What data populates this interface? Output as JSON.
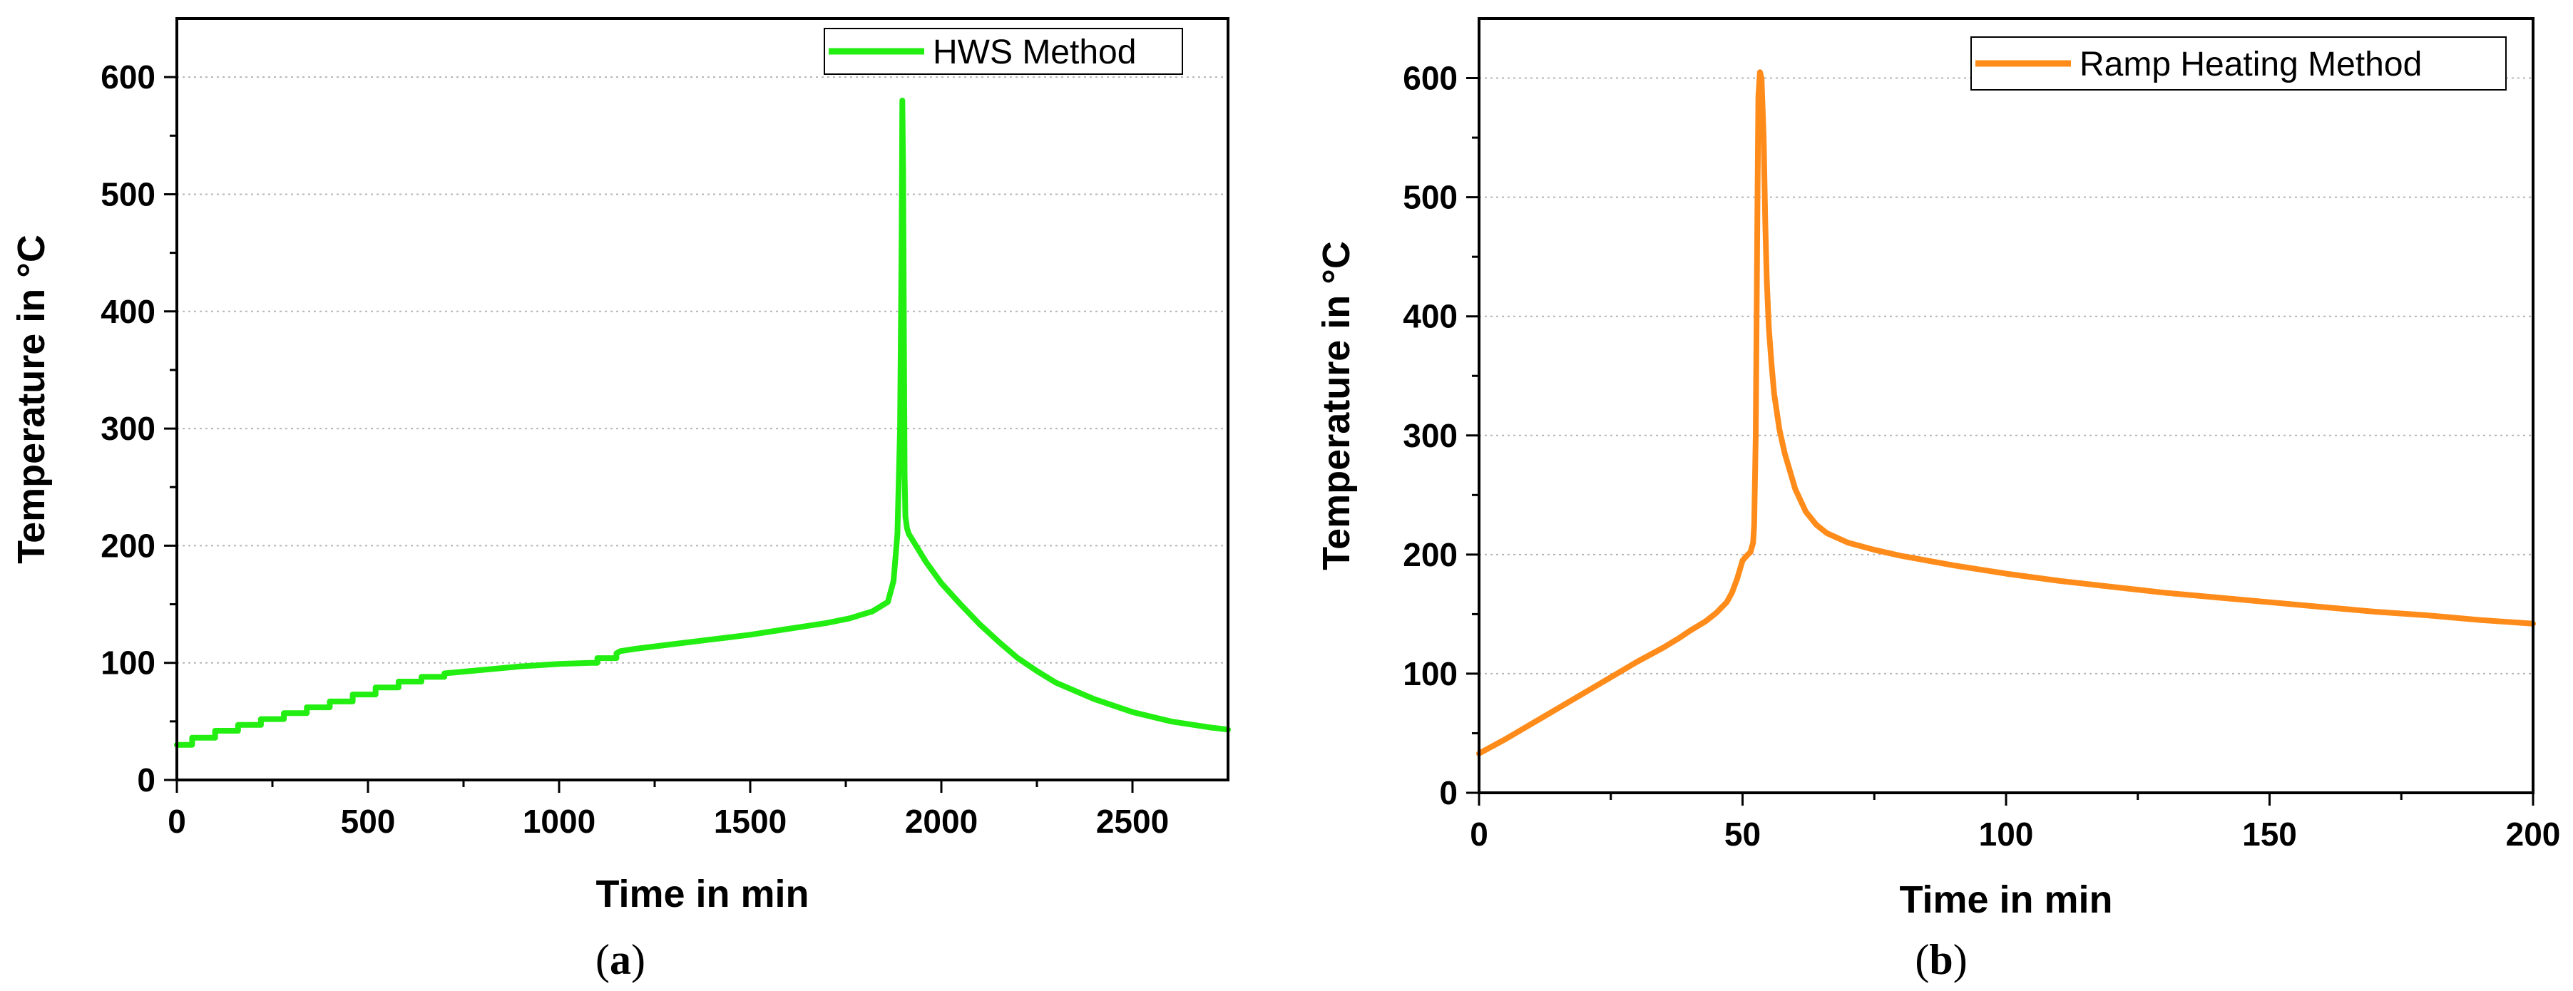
{
  "chart_data": [
    {
      "id": "a",
      "type": "line",
      "panel_label_open": "(",
      "panel_label_letter": "a",
      "panel_label_close": ")",
      "xlabel": "Time in min",
      "ylabel": "Temperature in °C",
      "xlim": [
        0,
        2750
      ],
      "ylim": [
        0,
        650
      ],
      "x_ticks": [
        0,
        500,
        1000,
        1500,
        2000,
        2500
      ],
      "y_ticks": [
        0,
        100,
        200,
        300,
        400,
        500,
        600
      ],
      "x_tick_labels": [
        "0",
        "500",
        "1000",
        "1500",
        "2000",
        "2500"
      ],
      "y_tick_labels": [
        "0",
        "100",
        "200",
        "300",
        "400",
        "500",
        "600"
      ],
      "grid": "horizontal dotted",
      "legend_position": "top-right",
      "series": [
        {
          "name": "HWS Method",
          "color": "#22ee11",
          "x": [
            0,
            40,
            40,
            100,
            100,
            160,
            160,
            220,
            220,
            280,
            280,
            340,
            340,
            400,
            400,
            460,
            460,
            520,
            520,
            580,
            580,
            640,
            640,
            700,
            700,
            800,
            900,
            1000,
            1080,
            1100,
            1100,
            1150,
            1150,
            1160,
            1200,
            1300,
            1400,
            1500,
            1600,
            1700,
            1760,
            1820,
            1860,
            1875,
            1885,
            1892,
            1896,
            1898,
            1900,
            1902,
            1904,
            1906,
            1910,
            1915,
            1930,
            1960,
            2000,
            2050,
            2100,
            2150,
            2200,
            2250,
            2300,
            2400,
            2500,
            2600,
            2700,
            2750
          ],
          "values": [
            30,
            30,
            36,
            36,
            42,
            42,
            47,
            47,
            52,
            52,
            57,
            57,
            62,
            62,
            67,
            67,
            73,
            73,
            79,
            79,
            84,
            84,
            88,
            88,
            91,
            94,
            97,
            99,
            100,
            100,
            104,
            104,
            108,
            110,
            112,
            116,
            120,
            124,
            129,
            134,
            138,
            144,
            152,
            170,
            210,
            300,
            460,
            580,
            520,
            380,
            260,
            225,
            215,
            210,
            202,
            186,
            168,
            150,
            133,
            118,
            104,
            93,
            83,
            69,
            58,
            50,
            45,
            43
          ]
        }
      ]
    },
    {
      "id": "b",
      "type": "line",
      "panel_label_open": "(",
      "panel_label_letter": "b",
      "panel_label_close": ")",
      "xlabel": "Time in min",
      "ylabel": "Temperature in °C",
      "xlim": [
        0,
        200
      ],
      "ylim": [
        0,
        650
      ],
      "x_ticks": [
        0,
        50,
        100,
        150,
        200
      ],
      "y_ticks": [
        0,
        100,
        200,
        300,
        400,
        500,
        600
      ],
      "x_tick_labels": [
        "0",
        "50",
        "100",
        "150",
        "200"
      ],
      "y_tick_labels": [
        "0",
        "100",
        "200",
        "300",
        "400",
        "500",
        "600"
      ],
      "grid": "horizontal dotted",
      "legend_position": "top-right",
      "series": [
        {
          "name": "Ramp Heating Method",
          "color": "#ff8c1a",
          "x": [
            0,
            5,
            10,
            15,
            20,
            25,
            30,
            35,
            38,
            40,
            43,
            45,
            47,
            48,
            49,
            50,
            51,
            51.5,
            52,
            52.2,
            52.5,
            52.8,
            53,
            53.3,
            53.6,
            54,
            54.3,
            54.6,
            55,
            55.5,
            56,
            57,
            58,
            60,
            62,
            64,
            66,
            70,
            75,
            80,
            90,
            100,
            110,
            120,
            130,
            140,
            150,
            160,
            170,
            180,
            190,
            200
          ],
          "values": [
            33,
            45,
            58,
            71,
            84,
            97,
            110,
            122,
            130,
            136,
            144,
            151,
            160,
            168,
            180,
            195,
            200,
            202,
            210,
            225,
            300,
            480,
            585,
            605,
            600,
            550,
            480,
            430,
            390,
            360,
            335,
            305,
            285,
            255,
            236,
            225,
            218,
            210,
            204,
            199,
            191,
            184,
            178,
            173,
            168,
            164,
            160,
            156,
            152,
            149,
            145,
            142
          ]
        }
      ]
    }
  ]
}
